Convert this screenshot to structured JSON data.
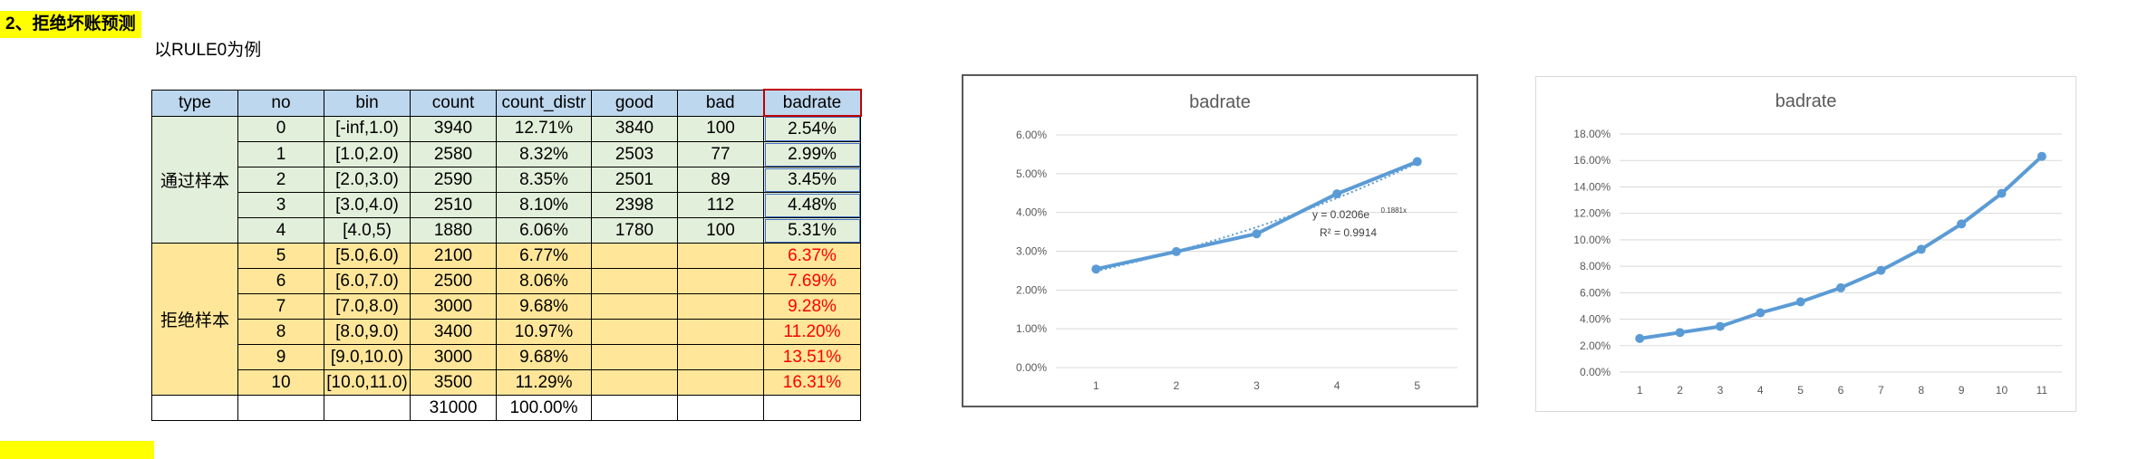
{
  "section": {
    "title": "2、拒绝坏账预测",
    "subtitle": "以RULE0为例"
  },
  "table": {
    "headers": [
      "type",
      "no",
      "bin",
      "count",
      "count_distr",
      "good",
      "bad",
      "badrate"
    ],
    "groups": {
      "pass": "通过样本",
      "reject": "拒绝样本"
    },
    "rows": [
      {
        "no": "0",
        "bin": "[-inf,1.0)",
        "count": "3940",
        "distr": "12.71%",
        "good": "3840",
        "bad": "100",
        "badrate": "2.54%"
      },
      {
        "no": "1",
        "bin": "[1.0,2.0)",
        "count": "2580",
        "distr": "8.32%",
        "good": "2503",
        "bad": "77",
        "badrate": "2.99%"
      },
      {
        "no": "2",
        "bin": "[2.0,3.0)",
        "count": "2590",
        "distr": "8.35%",
        "good": "2501",
        "bad": "89",
        "badrate": "3.45%"
      },
      {
        "no": "3",
        "bin": "[3.0,4.0)",
        "count": "2510",
        "distr": "8.10%",
        "good": "2398",
        "bad": "112",
        "badrate": "4.48%"
      },
      {
        "no": "4",
        "bin": "[4.0,5)",
        "count": "1880",
        "distr": "6.06%",
        "good": "1780",
        "bad": "100",
        "badrate": "5.31%"
      },
      {
        "no": "5",
        "bin": "[5.0,6.0)",
        "count": "2100",
        "distr": "6.77%",
        "good": "",
        "bad": "",
        "badrate": "6.37%"
      },
      {
        "no": "6",
        "bin": "[6.0,7.0)",
        "count": "2500",
        "distr": "8.06%",
        "good": "",
        "bad": "",
        "badrate": "7.69%"
      },
      {
        "no": "7",
        "bin": "[7.0,8.0)",
        "count": "3000",
        "distr": "9.68%",
        "good": "",
        "bad": "",
        "badrate": "9.28%"
      },
      {
        "no": "8",
        "bin": "[8.0,9.0)",
        "count": "3400",
        "distr": "10.97%",
        "good": "",
        "bad": "",
        "badrate": "11.20%"
      },
      {
        "no": "9",
        "bin": "[9.0,10.0)",
        "count": "3000",
        "distr": "9.68%",
        "good": "",
        "bad": "",
        "badrate": "13.51%"
      },
      {
        "no": "10",
        "bin": "[10.0,11.0)",
        "count": "3500",
        "distr": "11.29%",
        "good": "",
        "bad": "",
        "badrate": "16.31%"
      }
    ],
    "total": {
      "count": "31000",
      "distr": "100.00%"
    }
  },
  "colors": {
    "line": "#5b9bd5",
    "header": "#bdd7ee",
    "pass": "#e2efda",
    "reject": "#ffe699",
    "predicted_text": "#ff0000"
  },
  "chart_data": [
    {
      "type": "line",
      "title": "badrate",
      "x": [
        1,
        2,
        3,
        4,
        5
      ],
      "series": [
        {
          "values": [
            0.0254,
            0.0299,
            0.0345,
            0.0448,
            0.0531
          ]
        }
      ],
      "trendline": {
        "type": "exponential",
        "equation": "y = 0.0206e",
        "exponent": "0.1881x",
        "r2": "R² = 0.9914",
        "a": 0.0206,
        "b": 0.1881
      },
      "ylim": [
        0,
        0.06
      ],
      "yticks": [
        "0.00%",
        "1.00%",
        "2.00%",
        "3.00%",
        "4.00%",
        "5.00%",
        "6.00%"
      ],
      "xticks": [
        "1",
        "2",
        "3",
        "4",
        "5"
      ],
      "grid": true
    },
    {
      "type": "line",
      "title": "badrate",
      "x": [
        1,
        2,
        3,
        4,
        5,
        6,
        7,
        8,
        9,
        10,
        11
      ],
      "series": [
        {
          "values": [
            0.0254,
            0.0299,
            0.0345,
            0.0448,
            0.0531,
            0.0637,
            0.0769,
            0.0928,
            0.112,
            0.1351,
            0.1631
          ]
        }
      ],
      "ylim": [
        0,
        0.18
      ],
      "yticks": [
        "0.00%",
        "2.00%",
        "4.00%",
        "6.00%",
        "8.00%",
        "10.00%",
        "12.00%",
        "14.00%",
        "16.00%",
        "18.00%"
      ],
      "xticks": [
        "1",
        "2",
        "3",
        "4",
        "5",
        "6",
        "7",
        "8",
        "9",
        "10",
        "11"
      ],
      "grid": true
    }
  ]
}
